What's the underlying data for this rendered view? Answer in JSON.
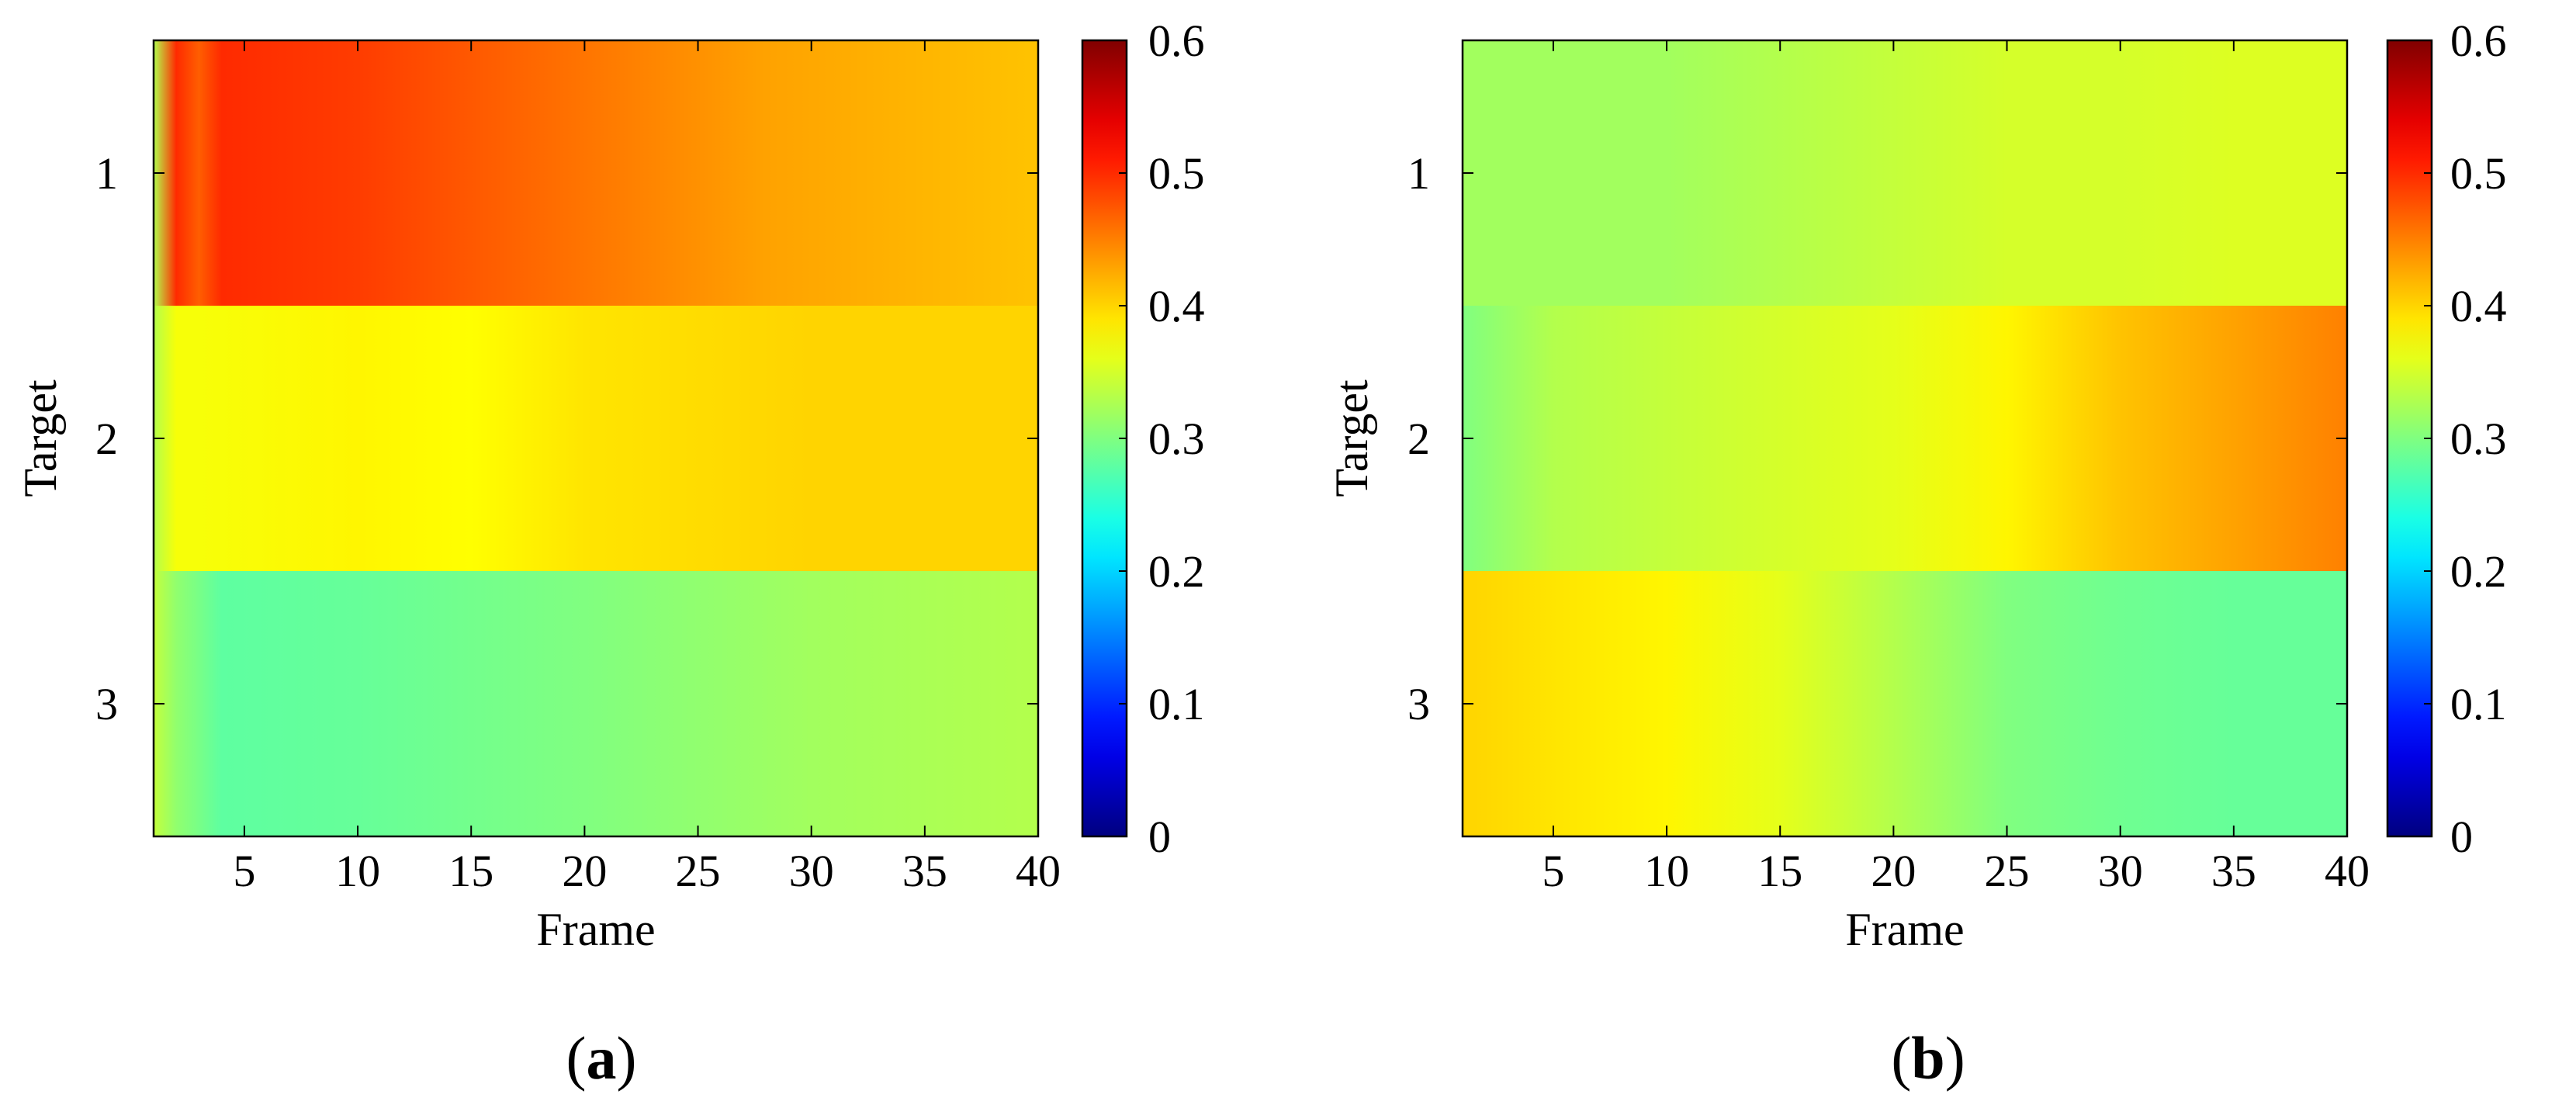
{
  "chart_data": [
    {
      "type": "heatmap",
      "panel_label": "a",
      "xlabel": "Frame",
      "ylabel": "Target",
      "x": [
        1,
        40
      ],
      "xticks": [
        5,
        10,
        15,
        20,
        25,
        30,
        35,
        40
      ],
      "yticks": [
        1,
        2,
        3
      ],
      "colorbar": {
        "range": [
          0,
          0.6
        ],
        "ticks": [
          "0",
          "0.1",
          "0.2",
          "0.3",
          "0.4",
          "0.5",
          "0.6"
        ]
      },
      "grid": false,
      "rows": [
        {
          "target": 1,
          "frames": [
            1,
            2,
            3,
            4,
            10,
            16,
            22,
            28,
            34,
            40
          ],
          "values": [
            0.33,
            0.5,
            0.47,
            0.5,
            0.49,
            0.47,
            0.45,
            0.43,
            0.42,
            0.41
          ]
        },
        {
          "target": 2,
          "frames": [
            1,
            2,
            3,
            10,
            15,
            20,
            30,
            40
          ],
          "values": [
            0.33,
            0.37,
            0.37,
            0.38,
            0.375,
            0.39,
            0.4,
            0.4
          ]
        },
        {
          "target": 3,
          "frames": [
            1,
            2,
            4,
            10,
            20,
            30,
            40
          ],
          "values": [
            0.34,
            0.31,
            0.28,
            0.285,
            0.3,
            0.32,
            0.33
          ]
        }
      ]
    },
    {
      "type": "heatmap",
      "panel_label": "b",
      "xlabel": "Frame",
      "ylabel": "Target",
      "x": [
        1,
        40
      ],
      "xticks": [
        5,
        10,
        15,
        20,
        25,
        30,
        35,
        40
      ],
      "yticks": [
        1,
        2,
        3
      ],
      "colorbar": {
        "range": [
          0,
          0.6
        ],
        "ticks": [
          "0",
          "0.1",
          "0.2",
          "0.3",
          "0.4",
          "0.5",
          "0.6"
        ]
      },
      "grid": false,
      "rows": [
        {
          "target": 1,
          "frames": [
            1,
            10,
            15,
            20,
            25,
            30,
            35,
            40
          ],
          "values": [
            0.32,
            0.32,
            0.33,
            0.34,
            0.35,
            0.35,
            0.355,
            0.355
          ]
        },
        {
          "target": 2,
          "frames": [
            1,
            5,
            10,
            15,
            20,
            25,
            30,
            35,
            40
          ],
          "values": [
            0.3,
            0.33,
            0.34,
            0.35,
            0.36,
            0.38,
            0.41,
            0.43,
            0.45
          ]
        },
        {
          "target": 3,
          "frames": [
            1,
            5,
            10,
            15,
            20,
            25,
            30,
            35,
            40
          ],
          "values": [
            0.4,
            0.39,
            0.38,
            0.36,
            0.33,
            0.3,
            0.29,
            0.285,
            0.285
          ]
        }
      ]
    }
  ]
}
